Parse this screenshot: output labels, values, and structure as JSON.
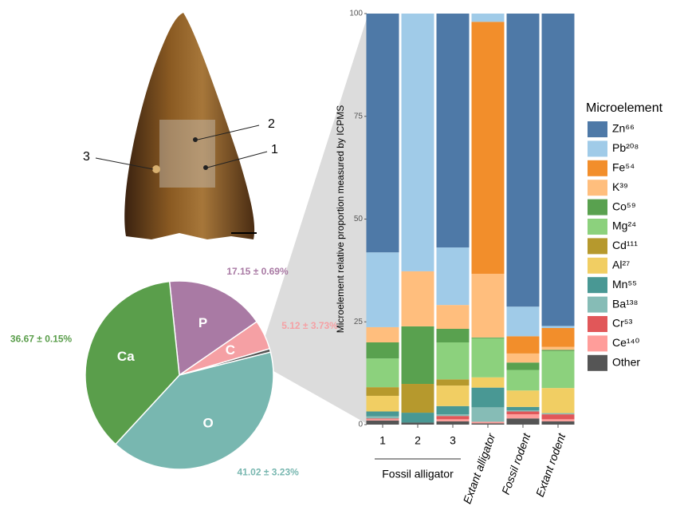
{
  "photo": {
    "labels": [
      "1",
      "2",
      "3"
    ]
  },
  "chart_data": [
    {
      "type": "pie",
      "categories": [
        "P",
        "C",
        null,
        "O",
        "Ca"
      ],
      "values": [
        17.15,
        5.12,
        0.6,
        41.02,
        36.67
      ],
      "value_labels": [
        "17.15 ± 0.69%",
        "5.12 ± 3.73%",
        null,
        "41.02 ± 3.23%",
        "36.67 ± 0.15%"
      ],
      "colors": [
        "#a97aa4",
        "#f5a0a4",
        "#555555",
        "#78b7b0",
        "#5a9e4b"
      ]
    },
    {
      "type": "stacked_bar",
      "categories": [
        "1",
        "2",
        "3",
        "Extant alligator",
        "Fossil rodent",
        "Extant rodent"
      ],
      "group_label": "Fossil alligator",
      "ylabel": "Microelement relative proportion measured by ICPMS",
      "legend_title": "Microelement",
      "ylim": [
        0,
        100
      ],
      "yticks": [
        0,
        25,
        50,
        75,
        100
      ],
      "series": [
        {
          "name": "Zn⁶⁶",
          "color": "#4e79a7",
          "values": [
            58.1,
            0,
            56.9,
            0,
            71.3,
            76
          ]
        },
        {
          "name": "Pb²⁰⁸",
          "color": "#a0cbe8",
          "values": [
            18.2,
            62.7,
            14,
            2,
            7.2,
            0.5
          ]
        },
        {
          "name": "Fe⁵⁴",
          "color": "#f28e2b",
          "values": [
            0,
            0,
            0,
            61.3,
            4.2,
            4.6
          ]
        },
        {
          "name": "K³⁹",
          "color": "#ffbe7d",
          "values": [
            3.7,
            13.4,
            5.8,
            15.5,
            2.2,
            0.7
          ]
        },
        {
          "name": "Co⁵⁹",
          "color": "#59a14f",
          "values": [
            3.9,
            14,
            3.3,
            0.2,
            1.8,
            0.3
          ]
        },
        {
          "name": "Mg²⁴",
          "color": "#8cd17d",
          "values": [
            7,
            0,
            9,
            9.5,
            5,
            9
          ]
        },
        {
          "name": "Cd¹¹¹",
          "color": "#b6992d",
          "values": [
            2.1,
            7,
            1.5,
            0,
            0,
            0
          ]
        },
        {
          "name": "Al²⁷",
          "color": "#f1ce63",
          "values": [
            3.8,
            0,
            5,
            2.5,
            4,
            6.1
          ]
        },
        {
          "name": "Mn⁵⁵",
          "color": "#499894",
          "values": [
            1.2,
            2.4,
            2,
            4.8,
            0.8,
            0
          ]
        },
        {
          "name": "Ba¹³⁸",
          "color": "#86bcb6",
          "values": [
            0.5,
            0,
            0.4,
            3.5,
            0.3,
            0.3
          ]
        },
        {
          "name": "Cr⁵³",
          "color": "#e15759",
          "values": [
            0.2,
            0,
            0.8,
            0,
            0.7,
            1.2
          ]
        },
        {
          "name": "Ce¹⁴⁰",
          "color": "#ff9d9a",
          "values": [
            0.3,
            0,
            0.5,
            0.4,
            1,
            0.5
          ]
        },
        {
          "name": "Other",
          "color": "#555555",
          "values": [
            1,
            0.5,
            0.8,
            0.3,
            1.5,
            0.8
          ]
        }
      ]
    }
  ]
}
